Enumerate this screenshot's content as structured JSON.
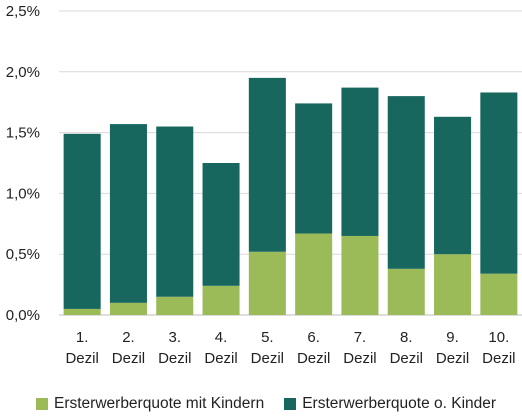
{
  "chart_data": {
    "type": "bar",
    "stacked": true,
    "categories": [
      "1.\nDezil",
      "2.\nDezil",
      "3.\nDezil",
      "4.\nDezil",
      "5.\nDezil",
      "6.\nDezil",
      "7.\nDezil",
      "8.\nDezil",
      "9.\nDezil",
      "10.\nDezil"
    ],
    "series": [
      {
        "name": "Ersterwerberquote mit Kindern",
        "color": "#9bbb59",
        "values": [
          0.05,
          0.1,
          0.15,
          0.24,
          0.52,
          0.67,
          0.65,
          0.38,
          0.5,
          0.34
        ]
      },
      {
        "name": "Ersterwerberquote o. Kinder",
        "color": "#17675f",
        "values": [
          1.44,
          1.47,
          1.4,
          1.01,
          1.43,
          1.07,
          1.22,
          1.42,
          1.13,
          1.49
        ]
      }
    ],
    "ylim": [
      0,
      2.5
    ],
    "yticks": [
      "0,0%",
      "0,5%",
      "1,0%",
      "1,5%",
      "2,0%",
      "2,5%"
    ],
    "grid": true,
    "legend_position": "bottom",
    "title": "",
    "xlabel": "",
    "ylabel": ""
  }
}
